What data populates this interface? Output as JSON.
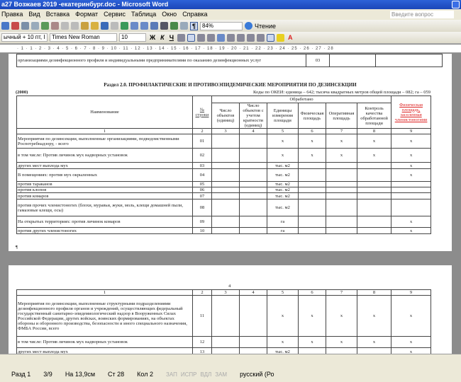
{
  "window": {
    "title": "а27 Возжаев 2019 -екатеринбург.doc - Microsoft Word"
  },
  "menu": [
    "Правка",
    "Вид",
    "Вставка",
    "Формат",
    "Сервис",
    "Таблица",
    "Окно",
    "Справка"
  ],
  "help_placeholder": "Введите вопрос",
  "toolbar": {
    "zoom": "84%",
    "reading": "Чтение"
  },
  "format": {
    "style": "ычный + 10 пт, I",
    "font": "Times New Roman",
    "size": "10",
    "bold": "Ж",
    "italic": "К",
    "underline": "Ч"
  },
  "ruler": "· 1 · 1 · 2 · 3 · 4 · 5 · 6 · 7 · 8 · 9 · 10 · 11 · 12 · 13 · 14 · 15 · 16 · 17 · 18 · 19 · 20 · 21 · 22 · 23 · 24 · 25 · 26 · 27 · 28",
  "page1": {
    "prev_text": "организациями дезинфекционного профиля и индивидуальными предпринимателями по оказанию дезинфекционных услуг",
    "prev_code": "03",
    "section_title": "Раздел 2.0. ПРОФИЛАКТИЧЕСКИЕ И ПРОТИВОЭПИДЕМИЧЕСКИЕ МЕРОПРИЯТИЯ ПО ДЕЗИНСЕКЦИИ",
    "table_code": "(2000)",
    "okei": "Коды по ОКЕИ: единица – 642; тысяча квадратных метров общей площади – 082; га – 059",
    "headers": {
      "name": "Наименование",
      "num": "№ строки",
      "processed": "Обработано",
      "c3": "Число объектов (единиц)",
      "c4": "Число объектов с учетом кратности (единиц)",
      "c5": "Единицы измерения площади",
      "c6": "Физическая площадь",
      "c7": "Оперативная площадь",
      "c8": "Контроль качества обработанной площади",
      "c9": "Физическая площадь, заселенная членистоногими"
    },
    "col_numbers": [
      "1",
      "2",
      "3",
      "4",
      "5",
      "6",
      "7",
      "8",
      "9"
    ],
    "rows": [
      {
        "name": "Мероприятия по дезинсекции, выполненные организациями, подведомственными Роспотребнадзору, - всего",
        "n": "01",
        "u": "x",
        "c6": "x",
        "c7": "x",
        "c8": "x",
        "c9": "x"
      },
      {
        "name": "в том числе: Против личинок мух надворных установок",
        "n": "02",
        "u": "x",
        "c6": "x",
        "c7": "x",
        "c8": "x",
        "c9": "x"
      },
      {
        "name": "других мест выплода мух",
        "n": "03",
        "u": "тыс. м2",
        "c6": "",
        "c7": "",
        "c8": "",
        "c9": "x"
      },
      {
        "name": "В помещениях: против мух окрыленных",
        "n": "04",
        "u": "тыс. м2",
        "c6": "",
        "c7": "",
        "c8": "",
        "c9": "x"
      },
      {
        "name": "против тараканов",
        "n": "05",
        "u": "тыс. м2",
        "c6": "",
        "c7": "",
        "c8": "",
        "c9": ""
      },
      {
        "name": "против клопов",
        "n": "06",
        "u": "тыс. м2",
        "c6": "",
        "c7": "",
        "c8": "",
        "c9": ""
      },
      {
        "name": "против комаров",
        "n": "07",
        "u": "тыс. м2",
        "c6": "",
        "c7": "",
        "c8": "",
        "c9": ""
      },
      {
        "name": "против прочих членистоногих (блохи, муравьи, жуки, моль, клещи домашней пыли, гамазовые клещи, осы)",
        "n": "08",
        "u": "тыс. м2",
        "c6": "",
        "c7": "",
        "c8": "",
        "c9": ""
      },
      {
        "name": "На открытых территориях: против личинок комаров",
        "n": "09",
        "u": "га",
        "c6": "",
        "c7": "",
        "c8": "",
        "c9": "x"
      },
      {
        "name": "против других членистоногих",
        "n": "10",
        "u": "га",
        "c6": "",
        "c7": "",
        "c8": "",
        "c9": "x"
      }
    ]
  },
  "page2": {
    "page_mark": "4",
    "rows": [
      {
        "name": "Мероприятия по дезинсекции, выполненные структурными подразделениями дезинфекционного профиля органов и учреждений, осуществляющих федеральный государственный санитарно-эпидемиологический надзор в Вооруженных Силах Российской Федерации, других войсках, воинских формированиях, на объектах обороны и оборонного производства, безопасности и иного специального назначения, ФМБА России, всего",
        "n": "11",
        "u": "x",
        "c6": "x",
        "c7": "x",
        "c8": "x",
        "c9": "x"
      },
      {
        "name": "в том числе: Против личинок мух надворных установок",
        "n": "12",
        "u": "x",
        "c6": "x",
        "c7": "x",
        "c8": "x",
        "c9": "x"
      },
      {
        "name": "других мест выплода мух",
        "n": "13",
        "u": "тыс. м2",
        "c6": "",
        "c7": "",
        "c8": "",
        "c9": "x"
      },
      {
        "name": "В помещениях: против мух окрыленных",
        "n": "14",
        "u": "тыс. м2",
        "c6": "",
        "c7": "",
        "c8": "",
        "c9": "x"
      }
    ]
  },
  "status": {
    "section": "Разд 1",
    "pages": "3/9",
    "at": "На 13,9см",
    "line": "Ст 28",
    "col": "Кол 2",
    "rec": "ЗАП",
    "trk": "ИСПР",
    "ext": "ВДЛ",
    "ovr": "ЗАМ",
    "lang": "русский (Ро"
  }
}
